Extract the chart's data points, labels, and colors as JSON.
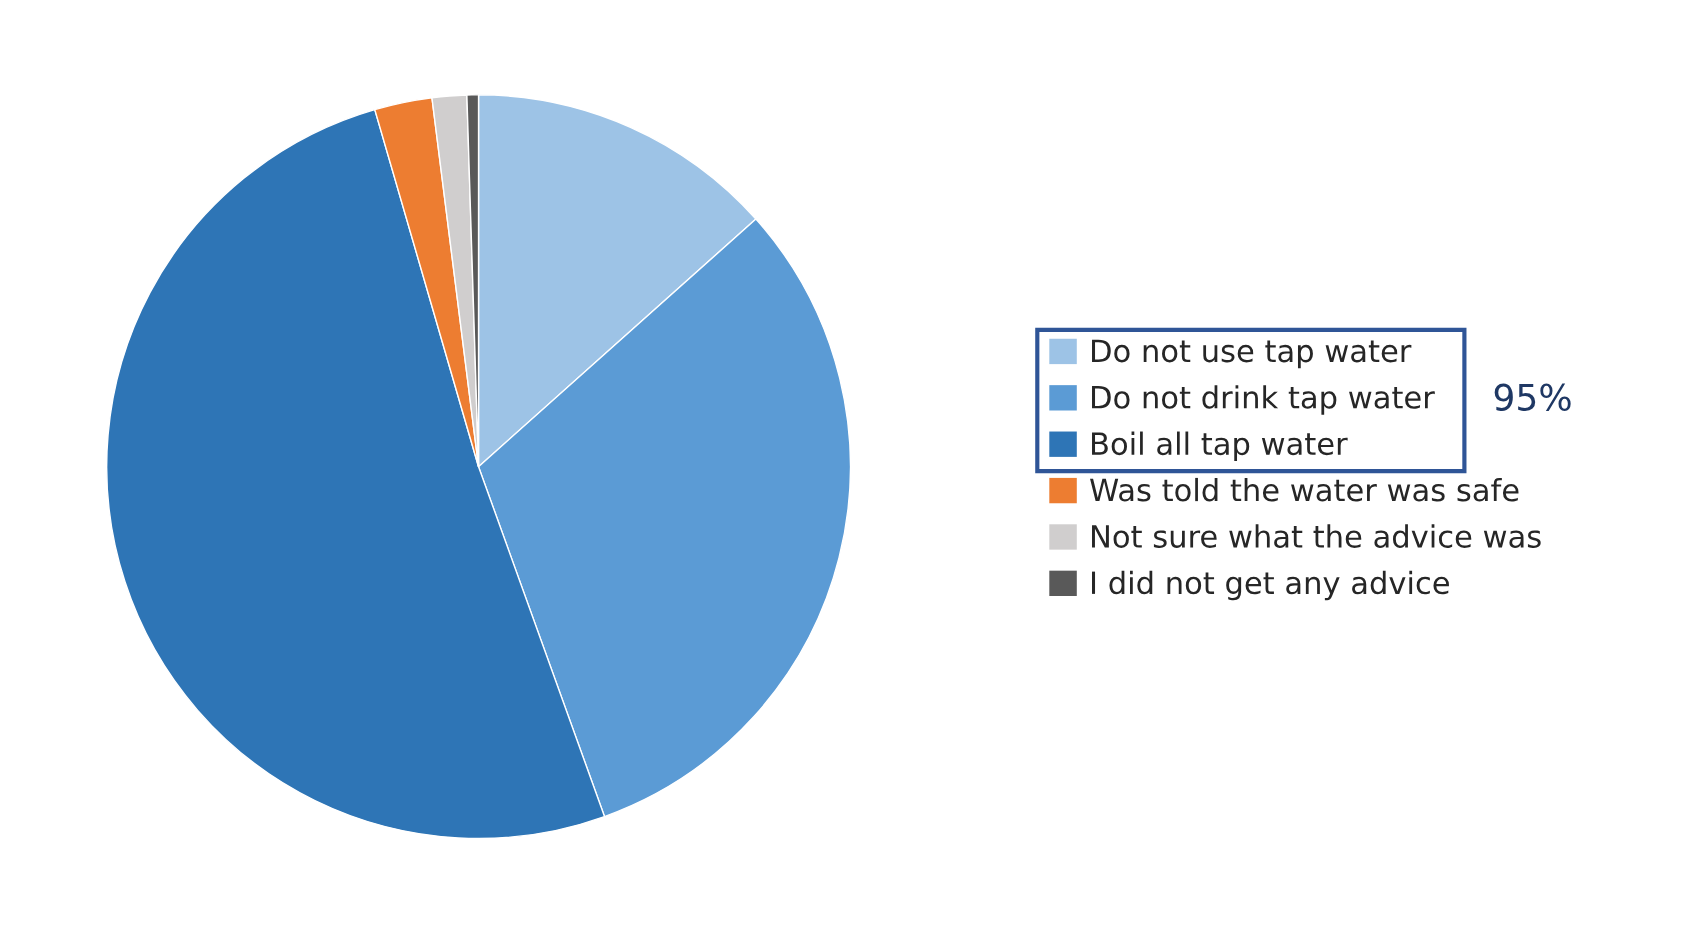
{
  "chart_data": {
    "type": "pie",
    "categories": [
      "Do not use tap water",
      "Do not drink tap water",
      "Boil all tap water",
      "Was told the water was safe",
      "Not sure what the advice was",
      "I did not get any advice"
    ],
    "values": [
      13.4,
      31.1,
      51.0,
      2.5,
      1.5,
      0.5
    ],
    "colors": [
      "#9dc3e6",
      "#5b9bd5",
      "#2e75b6",
      "#ed7d31",
      "#d0cece",
      "#595959"
    ],
    "legend": "right",
    "annotations": [
      "95%"
    ]
  }
}
